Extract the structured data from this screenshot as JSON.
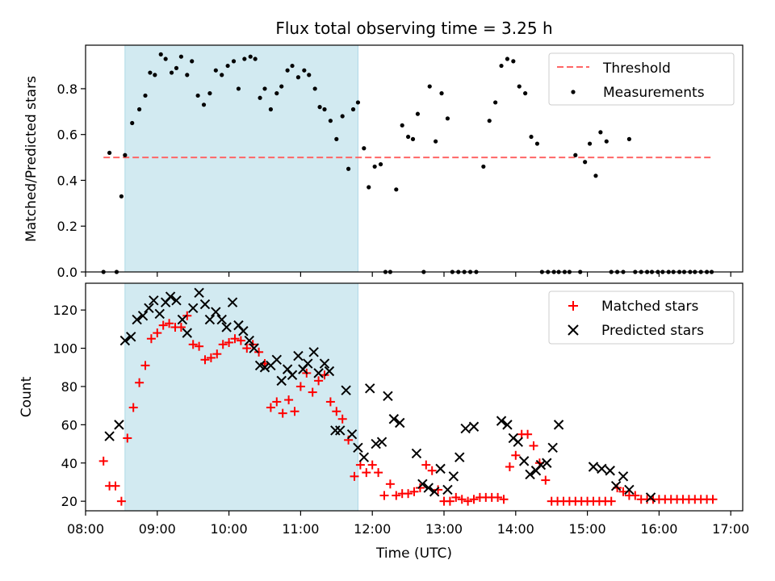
{
  "title": "Flux total observing time = 3.25 h",
  "colors": {
    "threshold": "#ff6666",
    "measurement": "#000000",
    "matched": "#ff0000",
    "predicted": "#000000",
    "span": "#add8e6"
  },
  "chart_data": [
    {
      "type": "scatter",
      "ylabel": "Matched/Predicted stars",
      "xlim": [
        "08:00",
        "17:10"
      ],
      "ylim": [
        0,
        0.99
      ],
      "yticks": [
        "0.0",
        "0.2",
        "0.4",
        "0.6",
        "0.8"
      ],
      "shaded_span": [
        "08:33",
        "11:48"
      ],
      "threshold": {
        "name": "Threshold",
        "value": 0.5,
        "x_range": [
          "08:15",
          "16:45"
        ]
      },
      "legend": {
        "placement": "top-right",
        "entries": [
          "Threshold",
          "Measurements"
        ]
      },
      "series": [
        {
          "name": "Measurements",
          "x": [
            "08:15",
            "08:20",
            "08:26",
            "08:30",
            "08:33",
            "08:39",
            "08:45",
            "08:50",
            "08:54",
            "08:58",
            "09:03",
            "09:07",
            "09:12",
            "09:16",
            "09:20",
            "09:25",
            "09:29",
            "09:34",
            "09:39",
            "09:44",
            "09:49",
            "09:54",
            "09:59",
            "10:04",
            "10:08",
            "10:13",
            "10:18",
            "10:22",
            "10:26",
            "10:30",
            "10:35",
            "10:40",
            "10:44",
            "10:49",
            "10:53",
            "10:58",
            "11:03",
            "11:07",
            "11:12",
            "11:16",
            "11:20",
            "11:25",
            "11:30",
            "11:35",
            "11:40",
            "11:44",
            "11:48",
            "11:53",
            "11:57",
            "12:02",
            "12:07",
            "12:11",
            "12:15",
            "12:20",
            "12:25",
            "12:30",
            "12:34",
            "12:38",
            "12:43",
            "12:48",
            "12:53",
            "12:58",
            "13:03",
            "13:07",
            "13:12",
            "13:17",
            "13:22",
            "13:27",
            "13:33",
            "13:38",
            "13:43",
            "13:48",
            "13:53",
            "13:58",
            "14:03",
            "14:08",
            "14:13",
            "14:18",
            "14:22",
            "14:27",
            "14:32",
            "14:36",
            "14:41",
            "14:45",
            "14:50",
            "14:54",
            "14:58",
            "15:02",
            "15:07",
            "15:11",
            "15:16",
            "15:20",
            "15:25",
            "15:30",
            "15:35",
            "15:40",
            "15:45",
            "15:50",
            "15:54",
            "15:59",
            "16:03",
            "16:08",
            "16:12",
            "16:17",
            "16:21",
            "16:26",
            "16:30",
            "16:35",
            "16:40",
            "16:44"
          ],
          "y": [
            0.0,
            0.52,
            0.0,
            0.33,
            0.51,
            0.65,
            0.71,
            0.77,
            0.87,
            0.86,
            0.95,
            0.93,
            0.87,
            0.89,
            0.94,
            0.86,
            0.92,
            0.77,
            0.73,
            0.78,
            0.88,
            0.86,
            0.9,
            0.92,
            0.8,
            0.93,
            0.94,
            0.93,
            0.76,
            0.8,
            0.71,
            0.78,
            0.81,
            0.88,
            0.9,
            0.85,
            0.88,
            0.86,
            0.8,
            0.72,
            0.71,
            0.66,
            0.58,
            0.68,
            0.45,
            0.71,
            0.74,
            0.54,
            0.37,
            0.46,
            0.47,
            0.0,
            0.0,
            0.36,
            0.64,
            0.59,
            0.58,
            0.69,
            0.0,
            0.81,
            0.57,
            0.78,
            0.67,
            0.0,
            0.0,
            0.0,
            0.0,
            0.0,
            0.46,
            0.66,
            0.74,
            0.9,
            0.93,
            0.92,
            0.81,
            0.78,
            0.59,
            0.56,
            0.0,
            0.0,
            0.0,
            0.0,
            0.0,
            0.0,
            0.51,
            0.0,
            0.48,
            0.56,
            0.42,
            0.61,
            0.57,
            0.0,
            0.0,
            0.0,
            0.58,
            0.0,
            0.0,
            0.0,
            0.0,
            0.0,
            0.0,
            0.0,
            0.0,
            0.0,
            0.0,
            0.0,
            0.0,
            0.0,
            0.0,
            0.0
          ]
        }
      ]
    },
    {
      "type": "scatter",
      "xlabel": "Time (UTC)",
      "ylabel": "Count",
      "xlim": [
        "08:00",
        "17:10"
      ],
      "ylim": [
        15,
        134
      ],
      "xticks": [
        "08:00",
        "09:00",
        "10:00",
        "11:00",
        "12:00",
        "13:00",
        "14:00",
        "15:00",
        "16:00",
        "17:00"
      ],
      "yticks": [
        "20",
        "40",
        "60",
        "80",
        "100",
        "120"
      ],
      "shaded_span": [
        "08:33",
        "11:48"
      ],
      "legend": {
        "placement": "top-right",
        "entries": [
          "Matched stars",
          "Predicted stars"
        ]
      },
      "series": [
        {
          "name": "Matched stars",
          "x": [
            "08:15",
            "08:20",
            "08:25",
            "08:30",
            "08:35",
            "08:40",
            "08:45",
            "08:50",
            "08:55",
            "09:00",
            "09:05",
            "09:10",
            "09:15",
            "09:20",
            "09:25",
            "09:30",
            "09:35",
            "09:40",
            "09:45",
            "09:50",
            "09:55",
            "10:00",
            "10:05",
            "10:10",
            "10:15",
            "10:20",
            "10:25",
            "10:30",
            "10:35",
            "10:40",
            "10:45",
            "10:50",
            "10:55",
            "11:00",
            "11:05",
            "11:10",
            "11:15",
            "11:20",
            "11:25",
            "11:30",
            "11:35",
            "11:40",
            "11:45",
            "11:50",
            "11:55",
            "12:00",
            "12:05",
            "12:10",
            "12:15",
            "12:20",
            "12:25",
            "12:30",
            "12:35",
            "12:40",
            "12:45",
            "12:50",
            "12:55",
            "13:00",
            "13:05",
            "13:10",
            "13:15",
            "13:20",
            "13:25",
            "13:30",
            "13:35",
            "13:40",
            "13:45",
            "13:50",
            "13:55",
            "14:00",
            "14:05",
            "14:10",
            "14:15",
            "14:20",
            "14:25",
            "14:30",
            "14:35",
            "14:40",
            "14:45",
            "14:50",
            "14:55",
            "15:00",
            "15:05",
            "15:10",
            "15:15",
            "15:20",
            "15:25",
            "15:30",
            "15:35",
            "15:40",
            "15:45",
            "15:50",
            "15:55",
            "16:00",
            "16:05",
            "16:10",
            "16:15",
            "16:20",
            "16:25",
            "16:30",
            "16:35",
            "16:40",
            "16:45"
          ],
          "y": [
            41,
            28,
            28,
            20,
            53,
            69,
            82,
            91,
            105,
            108,
            112,
            113,
            111,
            111,
            117,
            102,
            101,
            94,
            95,
            97,
            102,
            103,
            105,
            104,
            100,
            102,
            98,
            92,
            69,
            72,
            66,
            73,
            67,
            80,
            87,
            77,
            83,
            86,
            72,
            67,
            63,
            52,
            33,
            39,
            35,
            39,
            35,
            23,
            29,
            23,
            24,
            24,
            25,
            27,
            39,
            36,
            26,
            20,
            20,
            22,
            21,
            20,
            21,
            22,
            22,
            22,
            22,
            21,
            38,
            44,
            55,
            55,
            49,
            40,
            31,
            20,
            20,
            20,
            20,
            20,
            20,
            20,
            20,
            20,
            20,
            20,
            27,
            25,
            23,
            23,
            21,
            21,
            21,
            21,
            21,
            21,
            21,
            21,
            21,
            21,
            21,
            21,
            21
          ]
        },
        {
          "name": "Predicted stars",
          "x": [
            "08:20",
            "08:28",
            "08:33",
            "08:38",
            "08:43",
            "08:48",
            "08:53",
            "08:57",
            "09:02",
            "09:07",
            "09:11",
            "09:16",
            "09:21",
            "09:25",
            "09:30",
            "09:35",
            "09:40",
            "09:44",
            "09:49",
            "09:54",
            "09:58",
            "10:03",
            "10:08",
            "10:12",
            "10:17",
            "10:21",
            "10:26",
            "10:30",
            "10:35",
            "10:40",
            "10:44",
            "10:49",
            "10:53",
            "10:58",
            "11:02",
            "11:06",
            "11:11",
            "11:15",
            "11:20",
            "11:24",
            "11:29",
            "11:33",
            "11:38",
            "11:43",
            "11:48",
            "11:53",
            "11:58",
            "12:03",
            "12:08",
            "12:13",
            "12:18",
            "12:23",
            "12:37",
            "12:42",
            "12:47",
            "12:52",
            "12:57",
            "13:03",
            "13:08",
            "13:13",
            "13:18",
            "13:25",
            "13:48",
            "13:53",
            "13:58",
            "14:02",
            "14:07",
            "14:12",
            "14:17",
            "14:21",
            "14:26",
            "14:31",
            "14:36",
            "15:05",
            "15:12",
            "15:19",
            "15:24",
            "15:30",
            "15:35",
            "15:53"
          ],
          "y": [
            54,
            60,
            104,
            106,
            115,
            117,
            121,
            125,
            118,
            124,
            127,
            125,
            115,
            108,
            121,
            129,
            123,
            115,
            119,
            115,
            111,
            124,
            112,
            109,
            104,
            100,
            91,
            90,
            91,
            94,
            83,
            89,
            86,
            96,
            89,
            92,
            98,
            87,
            92,
            88,
            57,
            57,
            78,
            55,
            48,
            43,
            79,
            50,
            51,
            75,
            63,
            61,
            45,
            29,
            27,
            25,
            37,
            26,
            33,
            43,
            58,
            59,
            62,
            60,
            53,
            51,
            41,
            34,
            36,
            39,
            40,
            48,
            60,
            38,
            37,
            36,
            28,
            33,
            26,
            22
          ]
        }
      ]
    }
  ]
}
